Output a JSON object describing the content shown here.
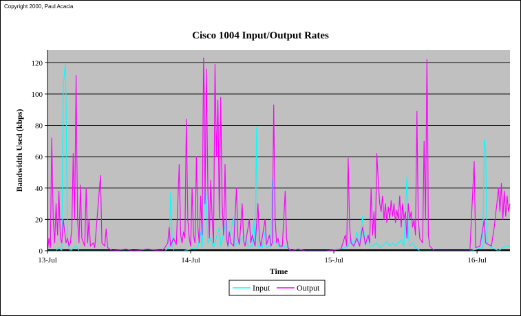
{
  "copyright": "Copyright 2000, Paul Acacia",
  "colors": {
    "plot_bg": "#c0c0c0",
    "input": "#00ffff",
    "output": "#ff00ff",
    "grid": "#000000"
  },
  "chart_data": {
    "type": "line",
    "title": "Cisco 1004 Input/Output Rates",
    "xlabel": "Time",
    "ylabel": "Bandwidth Used (kbps)",
    "ylim": [
      0,
      128
    ],
    "yticks": [
      0,
      20,
      40,
      60,
      80,
      100,
      120
    ],
    "xlim": [
      0,
      3.23
    ],
    "x_unit": "days since 13-Jul 00:00",
    "xticks": [
      {
        "x": 0,
        "label": "13-Jul"
      },
      {
        "x": 1,
        "label": "14-Jul"
      },
      {
        "x": 2,
        "label": "15-Jul"
      },
      {
        "x": 3,
        "label": "16-Jul"
      }
    ],
    "grid": true,
    "legend_position": "bottom-center",
    "series": [
      {
        "name": "Input",
        "color": "#00ffff",
        "points": [
          [
            0.0,
            0
          ],
          [
            0.06,
            0
          ],
          [
            0.08,
            2
          ],
          [
            0.1,
            0
          ],
          [
            0.11,
            105
          ],
          [
            0.12,
            115
          ],
          [
            0.125,
            119
          ],
          [
            0.13,
            95
          ],
          [
            0.14,
            5
          ],
          [
            0.16,
            0
          ],
          [
            0.2,
            3
          ],
          [
            0.22,
            0
          ],
          [
            0.35,
            0
          ],
          [
            0.5,
            0
          ],
          [
            0.6,
            0
          ],
          [
            0.75,
            0
          ],
          [
            0.82,
            0
          ],
          [
            0.85,
            2
          ],
          [
            0.86,
            37
          ],
          [
            0.87,
            8
          ],
          [
            0.88,
            0
          ],
          [
            0.95,
            0
          ],
          [
            1.05,
            2
          ],
          [
            1.07,
            12
          ],
          [
            1.08,
            2
          ],
          [
            1.1,
            42
          ],
          [
            1.11,
            30
          ],
          [
            1.12,
            5
          ],
          [
            1.14,
            8
          ],
          [
            1.16,
            2
          ],
          [
            1.2,
            15
          ],
          [
            1.21,
            3
          ],
          [
            1.25,
            20
          ],
          [
            1.26,
            2
          ],
          [
            1.3,
            22
          ],
          [
            1.31,
            3
          ],
          [
            1.38,
            10
          ],
          [
            1.4,
            3
          ],
          [
            1.43,
            3
          ],
          [
            1.44,
            20
          ],
          [
            1.45,
            5
          ],
          [
            1.46,
            79
          ],
          [
            1.465,
            30
          ],
          [
            1.47,
            3
          ],
          [
            1.5,
            2
          ],
          [
            1.52,
            12
          ],
          [
            1.53,
            2
          ],
          [
            1.56,
            3
          ],
          [
            1.57,
            45
          ],
          [
            1.58,
            5
          ],
          [
            1.6,
            6
          ],
          [
            1.62,
            2
          ],
          [
            1.66,
            3
          ],
          [
            1.7,
            0
          ],
          [
            1.8,
            0
          ],
          [
            1.95,
            0
          ],
          [
            2.05,
            1
          ],
          [
            2.1,
            3
          ],
          [
            2.12,
            8
          ],
          [
            2.14,
            2
          ],
          [
            2.16,
            12
          ],
          [
            2.18,
            3
          ],
          [
            2.2,
            22
          ],
          [
            2.22,
            3
          ],
          [
            2.24,
            10
          ],
          [
            2.25,
            3
          ],
          [
            2.27,
            3
          ],
          [
            2.3,
            5
          ],
          [
            2.32,
            2
          ],
          [
            2.35,
            4
          ],
          [
            2.37,
            6
          ],
          [
            2.39,
            3
          ],
          [
            2.41,
            5
          ],
          [
            2.43,
            3
          ],
          [
            2.45,
            5
          ],
          [
            2.47,
            7
          ],
          [
            2.49,
            3
          ],
          [
            2.51,
            47
          ],
          [
            2.52,
            10
          ],
          [
            2.53,
            3
          ],
          [
            2.55,
            5
          ],
          [
            2.57,
            2
          ],
          [
            2.6,
            0
          ],
          [
            2.7,
            0
          ],
          [
            2.8,
            0
          ],
          [
            2.95,
            0
          ],
          [
            3.0,
            1
          ],
          [
            3.04,
            2
          ],
          [
            3.05,
            71
          ],
          [
            3.06,
            65
          ],
          [
            3.07,
            5
          ],
          [
            3.1,
            2
          ],
          [
            3.15,
            0
          ],
          [
            3.2,
            3
          ],
          [
            3.23,
            3
          ]
        ]
      },
      {
        "name": "Output",
        "color": "#ff00ff",
        "points": [
          [
            0.0,
            0
          ],
          [
            0.01,
            8
          ],
          [
            0.02,
            2
          ],
          [
            0.03,
            72
          ],
          [
            0.035,
            45
          ],
          [
            0.04,
            20
          ],
          [
            0.05,
            5
          ],
          [
            0.06,
            30
          ],
          [
            0.07,
            10
          ],
          [
            0.08,
            38
          ],
          [
            0.09,
            8
          ],
          [
            0.1,
            5
          ],
          [
            0.11,
            20
          ],
          [
            0.12,
            12
          ],
          [
            0.13,
            5
          ],
          [
            0.14,
            8
          ],
          [
            0.15,
            3
          ],
          [
            0.16,
            5
          ],
          [
            0.17,
            15
          ],
          [
            0.18,
            62
          ],
          [
            0.19,
            20
          ],
          [
            0.2,
            112
          ],
          [
            0.205,
            60
          ],
          [
            0.21,
            20
          ],
          [
            0.22,
            5
          ],
          [
            0.23,
            42
          ],
          [
            0.24,
            8
          ],
          [
            0.26,
            3
          ],
          [
            0.27,
            40
          ],
          [
            0.28,
            5
          ],
          [
            0.29,
            20
          ],
          [
            0.3,
            3
          ],
          [
            0.32,
            5
          ],
          [
            0.33,
            2
          ],
          [
            0.37,
            48
          ],
          [
            0.38,
            5
          ],
          [
            0.4,
            3
          ],
          [
            0.41,
            14
          ],
          [
            0.42,
            2
          ],
          [
            0.45,
            0
          ],
          [
            0.55,
            1
          ],
          [
            0.6,
            0
          ],
          [
            0.7,
            1
          ],
          [
            0.8,
            0
          ],
          [
            0.82,
            2
          ],
          [
            0.84,
            5
          ],
          [
            0.85,
            15
          ],
          [
            0.86,
            3
          ],
          [
            0.88,
            8
          ],
          [
            0.9,
            4
          ],
          [
            0.92,
            55
          ],
          [
            0.93,
            10
          ],
          [
            0.94,
            5
          ],
          [
            0.95,
            12
          ],
          [
            0.96,
            8
          ],
          [
            0.97,
            84
          ],
          [
            0.98,
            20
          ],
          [
            0.99,
            8
          ],
          [
            1.0,
            3
          ],
          [
            1.01,
            40
          ],
          [
            1.02,
            10
          ],
          [
            1.03,
            5
          ],
          [
            1.04,
            60
          ],
          [
            1.05,
            15
          ],
          [
            1.06,
            5
          ],
          [
            1.07,
            35
          ],
          [
            1.08,
            10
          ],
          [
            1.09,
            123
          ],
          [
            1.095,
            100
          ],
          [
            1.1,
            30
          ],
          [
            1.11,
            116
          ],
          [
            1.12,
            40
          ],
          [
            1.13,
            8
          ],
          [
            1.14,
            45
          ],
          [
            1.15,
            20
          ],
          [
            1.16,
            5
          ],
          [
            1.17,
            119
          ],
          [
            1.18,
            60
          ],
          [
            1.19,
            96
          ],
          [
            1.2,
            20
          ],
          [
            1.21,
            98
          ],
          [
            1.22,
            30
          ],
          [
            1.23,
            10
          ],
          [
            1.24,
            55
          ],
          [
            1.25,
            8
          ],
          [
            1.26,
            3
          ],
          [
            1.27,
            12
          ],
          [
            1.28,
            5
          ],
          [
            1.3,
            3
          ],
          [
            1.32,
            40
          ],
          [
            1.33,
            8
          ],
          [
            1.34,
            4
          ],
          [
            1.36,
            30
          ],
          [
            1.37,
            6
          ],
          [
            1.38,
            3
          ],
          [
            1.41,
            20
          ],
          [
            1.42,
            5
          ],
          [
            1.43,
            10
          ],
          [
            1.45,
            3
          ],
          [
            1.47,
            30
          ],
          [
            1.48,
            8
          ],
          [
            1.49,
            3
          ],
          [
            1.52,
            20
          ],
          [
            1.53,
            4
          ],
          [
            1.55,
            10
          ],
          [
            1.56,
            3
          ],
          [
            1.57,
            5
          ],
          [
            1.58,
            93
          ],
          [
            1.59,
            20
          ],
          [
            1.6,
            5
          ],
          [
            1.61,
            8
          ],
          [
            1.62,
            3
          ],
          [
            1.64,
            3
          ],
          [
            1.66,
            38
          ],
          [
            1.67,
            8
          ],
          [
            1.68,
            2
          ],
          [
            1.7,
            0
          ],
          [
            1.75,
            1
          ],
          [
            1.8,
            0
          ],
          [
            1.95,
            0
          ],
          [
            2.05,
            1
          ],
          [
            2.08,
            10
          ],
          [
            2.09,
            3
          ],
          [
            2.1,
            59
          ],
          [
            2.11,
            15
          ],
          [
            2.12,
            5
          ],
          [
            2.14,
            3
          ],
          [
            2.16,
            8
          ],
          [
            2.18,
            3
          ],
          [
            2.2,
            15
          ],
          [
            2.22,
            4
          ],
          [
            2.24,
            10
          ],
          [
            2.25,
            5
          ],
          [
            2.26,
            40
          ],
          [
            2.27,
            10
          ],
          [
            2.28,
            25
          ],
          [
            2.29,
            8
          ],
          [
            2.3,
            62
          ],
          [
            2.31,
            45
          ],
          [
            2.32,
            30
          ],
          [
            2.33,
            25
          ],
          [
            2.34,
            35
          ],
          [
            2.35,
            20
          ],
          [
            2.36,
            30
          ],
          [
            2.37,
            18
          ],
          [
            2.38,
            28
          ],
          [
            2.39,
            20
          ],
          [
            2.4,
            32
          ],
          [
            2.41,
            22
          ],
          [
            2.42,
            30
          ],
          [
            2.43,
            18
          ],
          [
            2.44,
            26
          ],
          [
            2.45,
            20
          ],
          [
            2.46,
            35
          ],
          [
            2.47,
            15
          ],
          [
            2.48,
            30
          ],
          [
            2.49,
            20
          ],
          [
            2.5,
            25
          ],
          [
            2.51,
            8
          ],
          [
            2.52,
            30
          ],
          [
            2.53,
            20
          ],
          [
            2.54,
            25
          ],
          [
            2.55,
            15
          ],
          [
            2.56,
            20
          ],
          [
            2.57,
            10
          ],
          [
            2.58,
            89
          ],
          [
            2.585,
            50
          ],
          [
            2.59,
            20
          ],
          [
            2.6,
            8
          ],
          [
            2.62,
            5
          ],
          [
            2.63,
            70
          ],
          [
            2.64,
            20
          ],
          [
            2.65,
            122
          ],
          [
            2.655,
            80
          ],
          [
            2.66,
            10
          ],
          [
            2.67,
            3
          ],
          [
            2.7,
            0
          ],
          [
            2.8,
            0
          ],
          [
            2.95,
            0
          ],
          [
            2.98,
            57
          ],
          [
            2.99,
            2
          ],
          [
            3.02,
            3
          ],
          [
            3.05,
            20
          ],
          [
            3.06,
            5
          ],
          [
            3.1,
            3
          ],
          [
            3.12,
            15
          ],
          [
            3.15,
            40
          ],
          [
            3.16,
            25
          ],
          [
            3.17,
            43
          ],
          [
            3.18,
            20
          ],
          [
            3.19,
            38
          ],
          [
            3.2,
            22
          ],
          [
            3.21,
            35
          ],
          [
            3.22,
            25
          ],
          [
            3.23,
            30
          ]
        ]
      }
    ]
  }
}
